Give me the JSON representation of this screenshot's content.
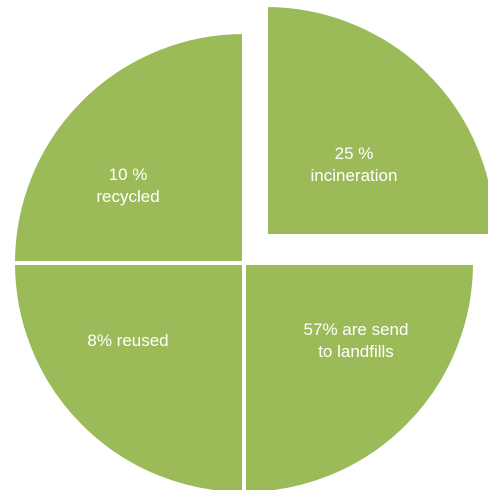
{
  "chart_data": {
    "type": "pie",
    "slices": [
      {
        "label_lines": [
          "25 %",
          "incineration"
        ],
        "value": 25
      },
      {
        "label_lines": [
          "57% are send",
          "to landfills"
        ],
        "value": 57
      },
      {
        "label_lines": [
          "8% reused"
        ],
        "value": 8
      },
      {
        "label_lines": [
          "10 %",
          "recycled"
        ],
        "value": 10
      }
    ],
    "exploded_slice": "incineration",
    "colors": {
      "fill": "#9BBB59",
      "border": "#ffffff",
      "label": "#ffffff"
    }
  }
}
